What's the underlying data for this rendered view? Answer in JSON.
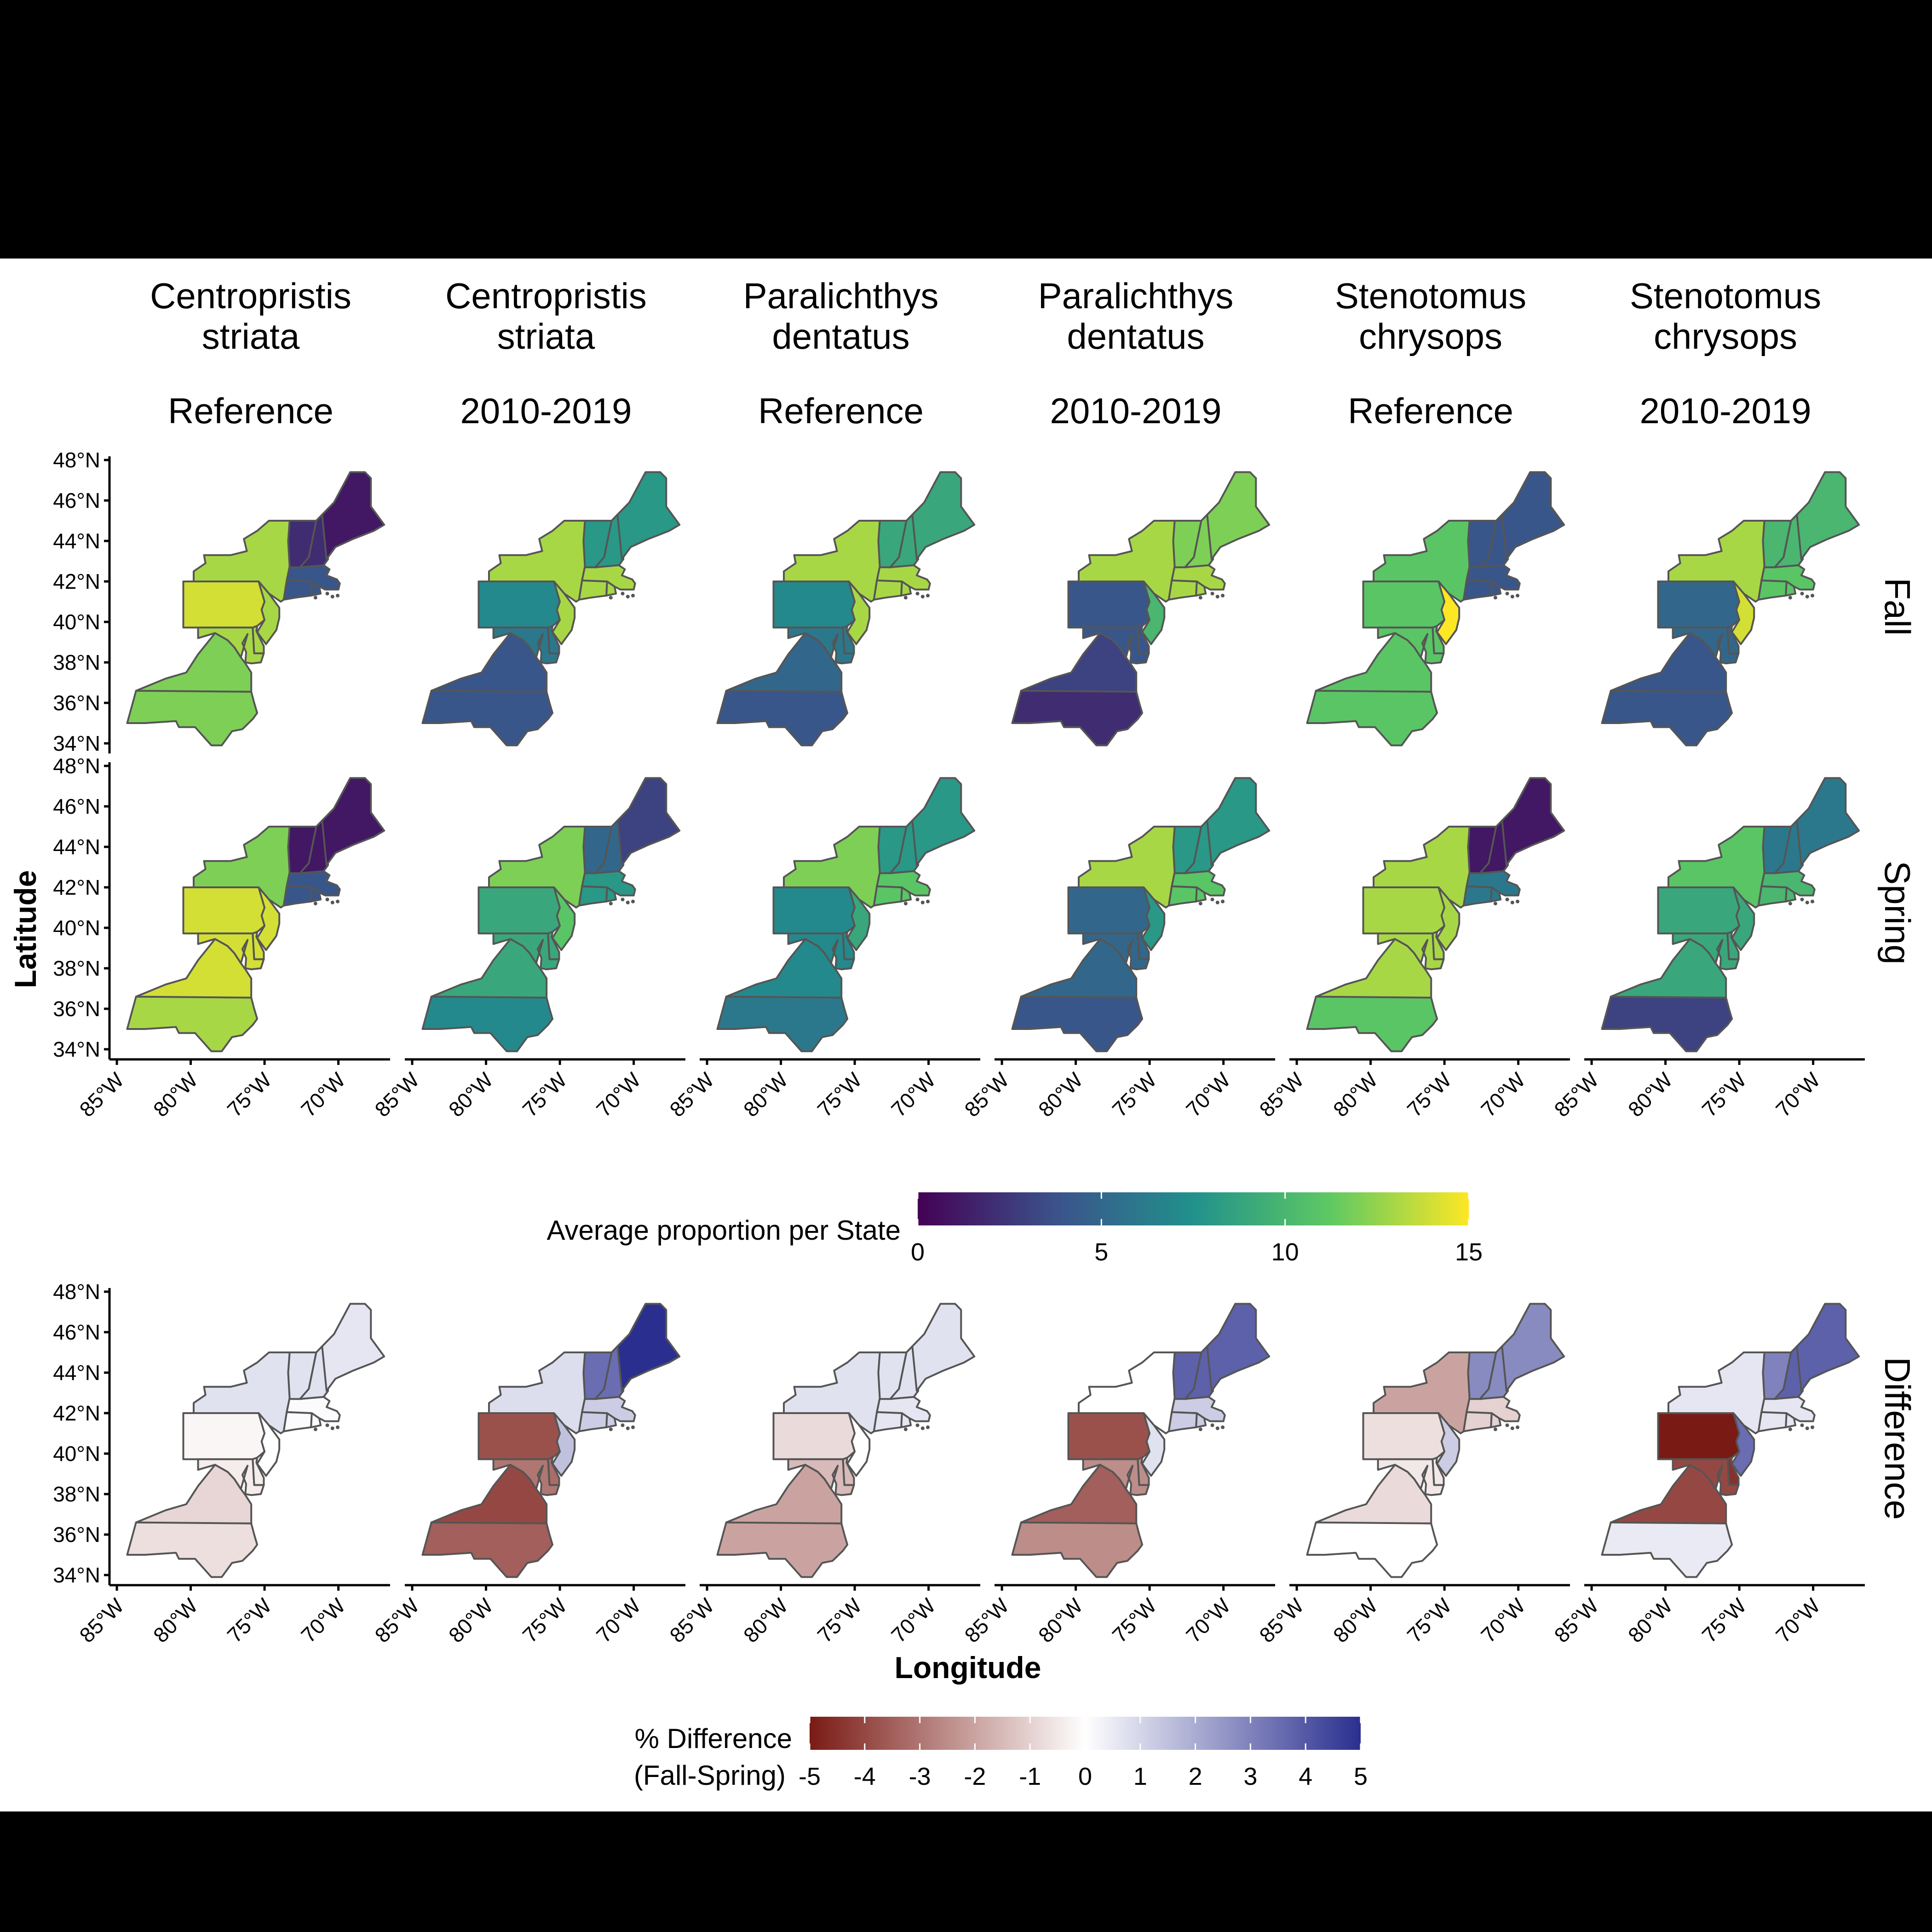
{
  "columns": [
    {
      "species_line1": "Centropristis",
      "species_line2": "striata",
      "period": "Reference"
    },
    {
      "species_line1": "Centropristis",
      "species_line2": "striata",
      "period": "2010-2019"
    },
    {
      "species_line1": "Paralichthys",
      "species_line2": "dentatus",
      "period": "Reference"
    },
    {
      "species_line1": "Paralichthys",
      "species_line2": "dentatus",
      "period": "2010-2019"
    },
    {
      "species_line1": "Stenotomus",
      "species_line2": "chrysops",
      "period": "Reference"
    },
    {
      "species_line1": "Stenotomus",
      "species_line2": "chrysops",
      "period": "2010-2019"
    }
  ],
  "rows": [
    "Fall",
    "Spring",
    "Difference"
  ],
  "axes": {
    "y_title": "Latitude",
    "x_title": "Longitude",
    "lat_ticks": [
      "48°N",
      "46°N",
      "44°N",
      "42°N",
      "40°N",
      "38°N",
      "36°N",
      "34°N"
    ],
    "lon_ticks": [
      "85°W",
      "80°W",
      "75°W",
      "70°W"
    ]
  },
  "legend_proportion": {
    "title": "Average proportion per State",
    "ticks": [
      "0",
      "5",
      "10",
      "15"
    ],
    "min": 0,
    "max": 15,
    "palette": [
      "#440154",
      "#3b528b",
      "#21918c",
      "#5ec962",
      "#fde725"
    ]
  },
  "legend_difference": {
    "title_line1": "% Difference",
    "title_line2": "(Fall-Spring)",
    "ticks": [
      "-5",
      "-4",
      "-3",
      "-2",
      "-1",
      "0",
      "1",
      "2",
      "3",
      "4",
      "5"
    ],
    "min": -5,
    "max": 5,
    "palette": [
      "#7a1a14",
      "#ffffff",
      "#2a2f8f"
    ]
  },
  "chart_data": {
    "type": "map",
    "states": [
      "ME",
      "NH",
      "VT",
      "MA",
      "RI",
      "CT",
      "NY",
      "NJ",
      "PA",
      "DE",
      "MD",
      "VA",
      "NC"
    ],
    "fall": [
      {
        "ME": 1,
        "NH": 2,
        "VT": 2,
        "MA": 4,
        "RI": 4,
        "CT": 4,
        "NY": 13,
        "NJ": 13,
        "PA": 14,
        "DE": 13,
        "MD": 13,
        "VA": 12,
        "NC": 12
      },
      {
        "ME": 8,
        "NH": 8,
        "VT": 8,
        "MA": 13,
        "RI": 13,
        "CT": 13,
        "NY": 13,
        "NJ": 13,
        "PA": 7,
        "DE": 6,
        "MD": 6,
        "VA": 4,
        "NC": 4
      },
      {
        "ME": 9,
        "NH": 9,
        "VT": 9,
        "MA": 13,
        "RI": 13,
        "CT": 13,
        "NY": 13,
        "NJ": 13,
        "PA": 7,
        "DE": 6,
        "MD": 6,
        "VA": 5,
        "NC": 4
      },
      {
        "ME": 12,
        "NH": 12,
        "VT": 12,
        "MA": 13,
        "RI": 13,
        "CT": 13,
        "NY": 13,
        "NJ": 10,
        "PA": 4,
        "DE": 4,
        "MD": 4,
        "VA": 3,
        "NC": 2
      },
      {
        "ME": 4,
        "NH": 4,
        "VT": 4,
        "MA": 4,
        "RI": 4,
        "CT": 4,
        "NY": 11,
        "NJ": 15,
        "PA": 11,
        "DE": 11,
        "MD": 11,
        "VA": 11,
        "NC": 11
      },
      {
        "ME": 10,
        "NH": 10,
        "VT": 10,
        "MA": 11,
        "RI": 11,
        "CT": 11,
        "NY": 13,
        "NJ": 14,
        "PA": 5,
        "DE": 5,
        "MD": 5,
        "VA": 4,
        "NC": 4
      }
    ],
    "spring": [
      {
        "ME": 1,
        "NH": 1,
        "VT": 1,
        "MA": 4,
        "RI": 4,
        "CT": 4,
        "NY": 12,
        "NJ": 14,
        "PA": 14,
        "DE": 14,
        "MD": 14,
        "VA": 14,
        "NC": 13
      },
      {
        "ME": 3,
        "NH": 5,
        "VT": 5,
        "MA": 8,
        "RI": 8,
        "CT": 8,
        "NY": 12,
        "NJ": 11,
        "PA": 9,
        "DE": 9,
        "MD": 9,
        "VA": 9,
        "NC": 7
      },
      {
        "ME": 8,
        "NH": 8,
        "VT": 8,
        "MA": 11,
        "RI": 11,
        "CT": 11,
        "NY": 12,
        "NJ": 9,
        "PA": 7,
        "DE": 7,
        "MD": 7,
        "VA": 7,
        "NC": 6
      },
      {
        "ME": 8,
        "NH": 8,
        "VT": 8,
        "MA": 11,
        "RI": 11,
        "CT": 11,
        "NY": 13,
        "NJ": 8,
        "PA": 5,
        "DE": 5,
        "MD": 5,
        "VA": 5,
        "NC": 4
      },
      {
        "ME": 1,
        "NH": 1,
        "VT": 1,
        "MA": 6,
        "RI": 6,
        "CT": 6,
        "NY": 13,
        "NJ": 13,
        "PA": 13,
        "DE": 13,
        "MD": 13,
        "VA": 13,
        "NC": 11
      },
      {
        "ME": 6,
        "NH": 6,
        "VT": 6,
        "MA": 10,
        "RI": 10,
        "CT": 10,
        "NY": 11,
        "NJ": 9,
        "PA": 9,
        "DE": 9,
        "MD": 9,
        "VA": 9,
        "NC": 3
      }
    ],
    "difference": [
      {
        "ME": 0.6,
        "NH": 0.7,
        "VT": 0.7,
        "MA": 0.1,
        "RI": 0.1,
        "CT": 0.1,
        "NY": 0.7,
        "NJ": 0.0,
        "PA": -0.2,
        "DE": -0.4,
        "MD": -0.4,
        "VA": -0.9,
        "NC": -0.7
      },
      {
        "ME": 5.0,
        "NH": 3.5,
        "VT": 3.5,
        "MA": 1.2,
        "RI": 1.2,
        "CT": 1.2,
        "NY": 0.8,
        "NJ": 1.5,
        "PA": -3.8,
        "DE": -3.2,
        "MD": -3.0,
        "VA": -4.0,
        "NC": -3.5
      },
      {
        "ME": 0.7,
        "NH": 0.7,
        "VT": 0.7,
        "MA": 0.6,
        "RI": 0.6,
        "CT": 0.6,
        "NY": 0.7,
        "NJ": 0.0,
        "PA": -0.8,
        "DE": -1.5,
        "MD": -1.5,
        "VA": -2.0,
        "NC": -2.0
      },
      {
        "ME": 3.8,
        "NH": 3.8,
        "VT": 3.8,
        "MA": 1.2,
        "RI": 1.2,
        "CT": 1.2,
        "NY": 0.0,
        "NJ": 0.7,
        "PA": -3.8,
        "DE": -2.5,
        "MD": -2.5,
        "VA": -3.5,
        "NC": -2.5
      },
      {
        "ME": 2.8,
        "NH": 2.8,
        "VT": 2.8,
        "MA": -1.0,
        "RI": -1.0,
        "CT": -1.0,
        "NY": -2.0,
        "NJ": 1.2,
        "PA": -0.7,
        "DE": -0.5,
        "MD": -0.5,
        "VA": -0.8,
        "NC": 0.0
      },
      {
        "ME": 3.8,
        "NH": 3.8,
        "VT": 3.0,
        "MA": 0.6,
        "RI": 0.6,
        "CT": 0.6,
        "NY": 0.6,
        "NJ": 3.5,
        "PA": -5.0,
        "DE": -4.5,
        "MD": -4.0,
        "VA": -4.0,
        "NC": 0.5
      }
    ]
  }
}
